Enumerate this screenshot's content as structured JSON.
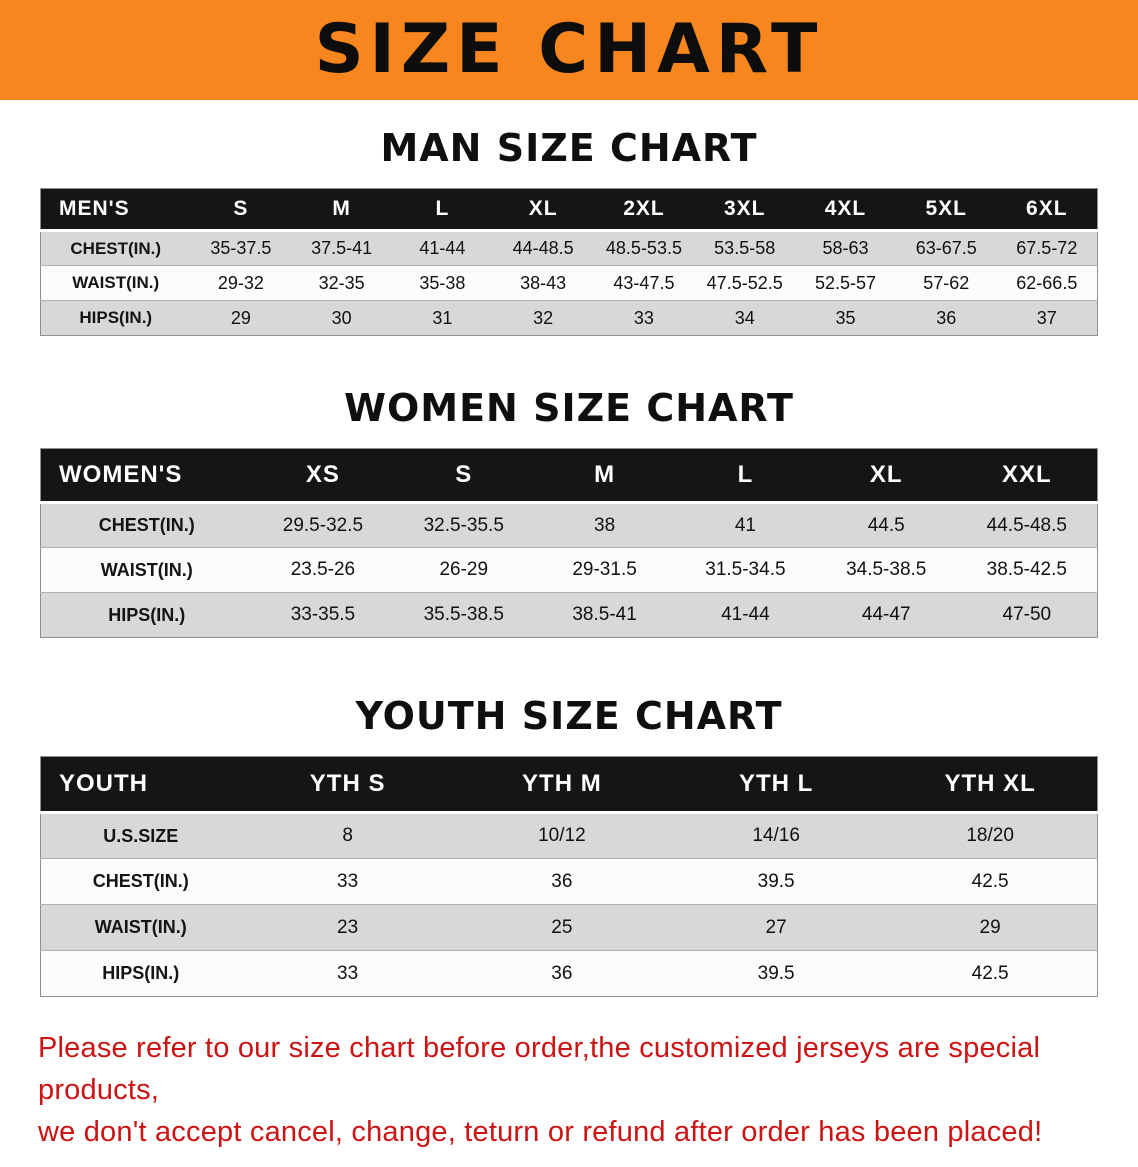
{
  "banner": {
    "title": "SIZE CHART",
    "bg_color": "#F6861D"
  },
  "sections": {
    "men": {
      "heading": "MAN SIZE CHART",
      "table": {
        "header": [
          "MEN'S",
          "S",
          "M",
          "L",
          "XL",
          "2XL",
          "3XL",
          "4XL",
          "5XL",
          "6XL"
        ],
        "rows": [
          {
            "label": "CHEST(IN.)",
            "values": [
              "35-37.5",
              "37.5-41",
              "41-44",
              "44-48.5",
              "48.5-53.5",
              "53.5-58",
              "58-63",
              "63-67.5",
              "67.5-72"
            ]
          },
          {
            "label": "WAIST(IN.)",
            "values": [
              "29-32",
              "32-35",
              "35-38",
              "38-43",
              "43-47.5",
              "47.5-52.5",
              "52.5-57",
              "57-62",
              "62-66.5"
            ]
          },
          {
            "label": "HIPS(IN.)",
            "values": [
              "29",
              "30",
              "31",
              "32",
              "33",
              "34",
              "35",
              "36",
              "37"
            ]
          }
        ]
      }
    },
    "women": {
      "heading": "WOMEN SIZE CHART",
      "table": {
        "header": [
          "WOMEN'S",
          "XS",
          "S",
          "M",
          "L",
          "XL",
          "XXL"
        ],
        "rows": [
          {
            "label": "CHEST(IN.)",
            "values": [
              "29.5-32.5",
              "32.5-35.5",
              "38",
              "41",
              "44.5",
              "44.5-48.5"
            ]
          },
          {
            "label": "WAIST(IN.)",
            "values": [
              "23.5-26",
              "26-29",
              "29-31.5",
              "31.5-34.5",
              "34.5-38.5",
              "38.5-42.5"
            ]
          },
          {
            "label": "HIPS(IN.)",
            "values": [
              "33-35.5",
              "35.5-38.5",
              "38.5-41",
              "41-44",
              "44-47",
              "47-50"
            ]
          }
        ]
      }
    },
    "youth": {
      "heading": "YOUTH SIZE CHART",
      "table": {
        "header": [
          "YOUTH",
          "YTH S",
          "YTH M",
          "YTH L",
          "YTH XL"
        ],
        "rows": [
          {
            "label": "U.S.SIZE",
            "values": [
              "8",
              "10/12",
              "14/16",
              "18/20"
            ]
          },
          {
            "label": "CHEST(IN.)",
            "values": [
              "33",
              "36",
              "39.5",
              "42.5"
            ]
          },
          {
            "label": "WAIST(IN.)",
            "values": [
              "23",
              "25",
              "27",
              "29"
            ]
          },
          {
            "label": "HIPS(IN.)",
            "values": [
              "33",
              "36",
              "39.5",
              "42.5"
            ]
          }
        ]
      }
    }
  },
  "disclaimer": {
    "line1": "Please refer to our size chart before order,the customized jerseys are special products,",
    "line2": "we don't accept cancel, change, teturn or refund after order has been placed!",
    "color": "#CC1414"
  }
}
